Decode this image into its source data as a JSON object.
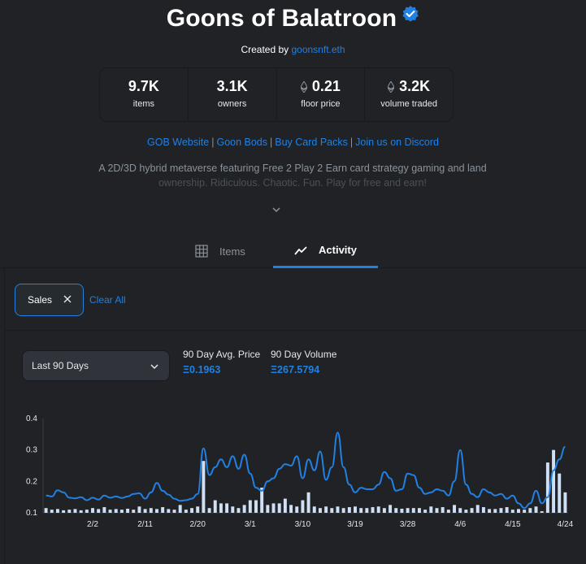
{
  "collection": {
    "title": "Goons of Balatroon",
    "created_by_prefix": "Created by",
    "creator": "goonsnft.eth"
  },
  "stats": [
    {
      "value": "9.7K",
      "label": "items",
      "eth": false
    },
    {
      "value": "3.1K",
      "label": "owners",
      "eth": false
    },
    {
      "value": "0.21",
      "label": "floor price",
      "eth": true
    },
    {
      "value": "3.2K",
      "label": "volume traded",
      "eth": true
    }
  ],
  "links": [
    "GOB Website",
    "Goon Bods",
    "Buy Card Packs",
    "Join us on Discord"
  ],
  "links_separator": "|",
  "description": {
    "line1": "A 2D/3D hybrid metaverse featuring Free 2 Play 2 Earn card strategy gaming and land",
    "line2": "ownership. Ridiculous. Chaotic. Fun. Play for free and earn!"
  },
  "tabs": {
    "items": "Items",
    "activity": "Activity",
    "active": "activity"
  },
  "filters": {
    "chip": "Sales",
    "clear_all": "Clear All"
  },
  "range_select": {
    "value": "Last 90 Days"
  },
  "metrics": {
    "avg_label": "90 Day Avg. Price",
    "avg_value": "Ξ0.1963",
    "vol_label": "90 Day Volume",
    "vol_value": "Ξ267.5794"
  },
  "colors": {
    "accent": "#2081e2",
    "bar": "#cfe0f4",
    "background": "#202225"
  },
  "chart_data": {
    "type": "bar+line",
    "title": "",
    "xlabel": "",
    "ylabel": "",
    "ylim": [
      0.1,
      0.4
    ],
    "yticks": [
      0.1,
      0.2,
      0.3,
      0.4
    ],
    "x_tick_labels": [
      "2/2",
      "2/11",
      "2/20",
      "3/1",
      "3/10",
      "3/19",
      "3/28",
      "4/6",
      "4/15",
      "4/24"
    ],
    "x_tick_days": [
      8,
      17,
      26,
      35,
      44,
      53,
      62,
      71,
      80,
      89
    ],
    "series": [
      {
        "kind": "line",
        "values": [
          0.155,
          0.152,
          0.172,
          0.165,
          0.148,
          0.146,
          0.15,
          0.14,
          0.148,
          0.142,
          0.155,
          0.148,
          0.152,
          0.147,
          0.152,
          0.16,
          0.162,
          0.145,
          0.165,
          0.195,
          0.17,
          0.158,
          0.145,
          0.138,
          0.14,
          0.145,
          0.16,
          0.305,
          0.22,
          0.245,
          0.27,
          0.245,
          0.28,
          0.24,
          0.285,
          0.225,
          0.18,
          0.17,
          0.2,
          0.21,
          0.24,
          0.255,
          0.25,
          0.28,
          0.21,
          0.27,
          0.235,
          0.295,
          0.205,
          0.245,
          0.355,
          0.245,
          0.19,
          0.165,
          0.18,
          0.175,
          0.175,
          0.19,
          0.23,
          0.21,
          0.17,
          0.175,
          0.225,
          0.22,
          0.18,
          0.16,
          0.165,
          0.175,
          0.17,
          0.155,
          0.2,
          0.3,
          0.19,
          0.16,
          0.15,
          0.175,
          0.165,
          0.155,
          0.16,
          0.145,
          0.155,
          0.13,
          0.115,
          0.13,
          0.17,
          0.13,
          0.15,
          0.235,
          0.27,
          0.31
        ]
      },
      {
        "kind": "bar",
        "values": [
          0.115,
          0.11,
          0.112,
          0.108,
          0.11,
          0.112,
          0.108,
          0.11,
          0.115,
          0.112,
          0.118,
          0.11,
          0.112,
          0.11,
          0.113,
          0.11,
          0.12,
          0.112,
          0.115,
          0.112,
          0.118,
          0.112,
          0.11,
          0.125,
          0.11,
          0.115,
          0.12,
          0.265,
          0.115,
          0.14,
          0.13,
          0.13,
          0.12,
          0.115,
          0.125,
          0.14,
          0.14,
          0.18,
          0.125,
          0.13,
          0.13,
          0.145,
          0.125,
          0.12,
          0.14,
          0.165,
          0.12,
          0.115,
          0.12,
          0.115,
          0.12,
          0.115,
          0.118,
          0.12,
          0.115,
          0.115,
          0.118,
          0.12,
          0.115,
          0.125,
          0.115,
          0.113,
          0.115,
          0.115,
          0.115,
          0.11,
          0.12,
          0.115,
          0.118,
          0.11,
          0.125,
          0.115,
          0.11,
          0.115,
          0.125,
          0.118,
          0.112,
          0.112,
          0.115,
          0.118,
          0.11,
          0.112,
          0.11,
          0.115,
          0.12,
          0.105,
          0.26,
          0.3,
          0.225,
          0.165
        ]
      }
    ]
  }
}
